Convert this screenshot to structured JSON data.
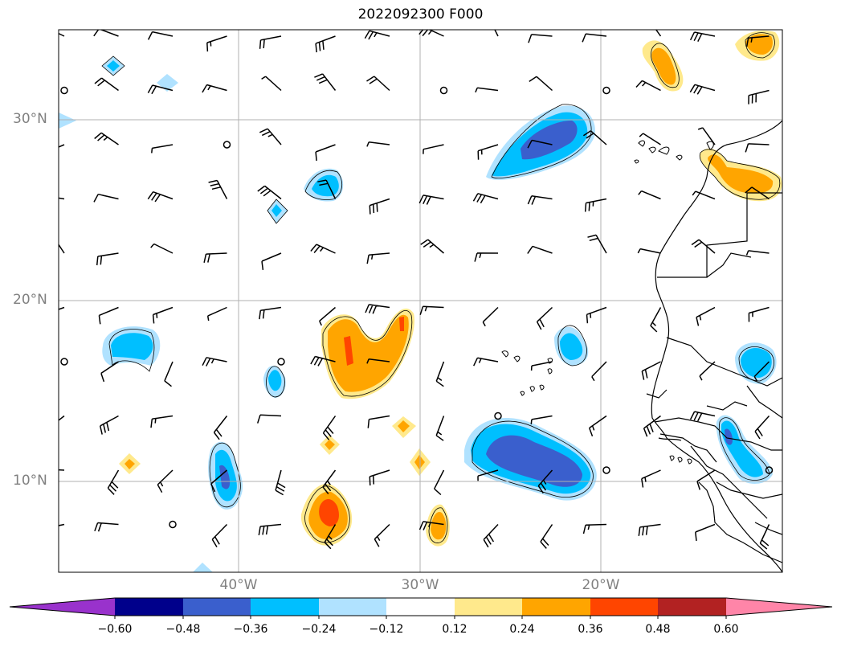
{
  "title": "2022092300 F000",
  "axes": {
    "lat_labels": [
      "30°N",
      "20°N",
      "10°N"
    ],
    "lon_labels": [
      "40°W",
      "30°W",
      "20°W"
    ]
  },
  "colorbar": {
    "ticks": [
      "−0.60",
      "−0.48",
      "−0.36",
      "−0.24",
      "−0.12",
      "0.12",
      "0.24",
      "0.36",
      "0.48",
      "0.60"
    ],
    "colors": [
      "#9932cc",
      "#00008b",
      "#3a5fcd",
      "#00bfff",
      "#b0e2ff",
      "#ffffff",
      "#ffe98c",
      "#ffa500",
      "#ff4500",
      "#b22222",
      "#ff85a8"
    ]
  },
  "map_colors": {
    "grid": "#b0b0b0",
    "barb": "#000000",
    "coast": "#000000"
  }
}
